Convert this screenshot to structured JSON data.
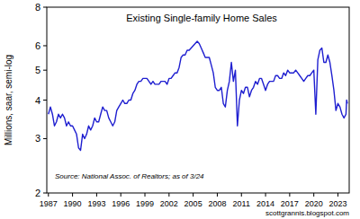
{
  "chart_data": {
    "type": "line",
    "title": "Existing Single-family Home Sales",
    "y_label": "Millions, saar, semi-log",
    "source": "Source: National Assoc. of Realtors; as of 3/24",
    "watermark": "scottgrannis.blogspot.com",
    "log": "y",
    "grid": false,
    "color": "#1f1fd0",
    "xlim": [
      1986.8,
      2024.4
    ],
    "xticks": [
      1987,
      1990,
      1993,
      1996,
      1999,
      2002,
      2005,
      2008,
      2011,
      2014,
      2017,
      2020,
      2023
    ],
    "ylim": [
      2,
      8
    ],
    "yticks": [
      2,
      3,
      4,
      5,
      6,
      8
    ],
    "x": [
      1987,
      1987.25,
      1987.5,
      1987.75,
      1988,
      1988.25,
      1988.5,
      1988.75,
      1989,
      1989.25,
      1989.5,
      1989.75,
      1990,
      1990.25,
      1990.5,
      1990.75,
      1991,
      1991.25,
      1991.5,
      1991.75,
      1992,
      1992.25,
      1992.5,
      1992.75,
      1993,
      1993.25,
      1993.5,
      1993.75,
      1994,
      1994.25,
      1994.5,
      1994.75,
      1995,
      1995.25,
      1995.5,
      1995.75,
      1996,
      1996.25,
      1996.5,
      1996.75,
      1997,
      1997.25,
      1997.5,
      1997.75,
      1998,
      1998.25,
      1998.5,
      1998.75,
      1999,
      1999.25,
      1999.5,
      1999.75,
      2000,
      2000.25,
      2000.5,
      2000.75,
      2001,
      2001.25,
      2001.5,
      2001.75,
      2002,
      2002.25,
      2002.5,
      2002.75,
      2003,
      2003.25,
      2003.5,
      2003.75,
      2004,
      2004.25,
      2004.5,
      2004.75,
      2005,
      2005.25,
      2005.5,
      2005.75,
      2006,
      2006.25,
      2006.5,
      2006.75,
      2007,
      2007.25,
      2007.5,
      2007.75,
      2008,
      2008.25,
      2008.5,
      2008.75,
      2009,
      2009.25,
      2009.5,
      2009.75,
      2010,
      2010.25,
      2010.5,
      2010.75,
      2011,
      2011.25,
      2011.5,
      2011.75,
      2012,
      2012.25,
      2012.5,
      2012.75,
      2013,
      2013.25,
      2013.5,
      2013.75,
      2014,
      2014.25,
      2014.5,
      2014.75,
      2015,
      2015.25,
      2015.5,
      2015.75,
      2016,
      2016.25,
      2016.5,
      2016.75,
      2017,
      2017.25,
      2017.5,
      2017.75,
      2018,
      2018.25,
      2018.5,
      2018.75,
      2019,
      2019.25,
      2019.5,
      2019.75,
      2020,
      2020.25,
      2020.5,
      2020.75,
      2021,
      2021.25,
      2021.5,
      2021.75,
      2022,
      2022.25,
      2022.5,
      2022.75,
      2023,
      2023.25,
      2023.5,
      2023.75,
      2024,
      2024.08,
      2024.17
    ],
    "values": [
      3.6,
      3.8,
      3.6,
      3.3,
      3.4,
      3.6,
      3.5,
      3.6,
      3.5,
      3.3,
      3.4,
      3.3,
      3.3,
      3.2,
      3.1,
      2.8,
      2.75,
      3.1,
      3.0,
      3.1,
      3.3,
      3.2,
      3.3,
      3.5,
      3.4,
      3.4,
      3.6,
      3.8,
      3.7,
      3.7,
      3.5,
      3.4,
      3.3,
      3.4,
      3.7,
      3.8,
      3.9,
      4.0,
      3.9,
      3.9,
      4.0,
      4.0,
      4.2,
      4.3,
      4.5,
      4.6,
      4.6,
      4.7,
      4.7,
      4.7,
      4.6,
      4.5,
      4.6,
      4.5,
      4.5,
      4.5,
      4.6,
      4.6,
      4.6,
      4.5,
      4.7,
      4.7,
      4.8,
      4.9,
      4.9,
      5.1,
      5.5,
      5.6,
      5.6,
      5.8,
      5.8,
      5.9,
      6.0,
      6.1,
      6.2,
      6.1,
      5.9,
      5.7,
      5.5,
      5.5,
      5.5,
      5.2,
      4.9,
      4.4,
      4.3,
      4.3,
      4.4,
      3.9,
      3.8,
      4.3,
      4.6,
      5.3,
      4.6,
      5.0,
      3.3,
      4.0,
      4.3,
      4.2,
      4.4,
      4.4,
      4.1,
      4.3,
      4.4,
      4.6,
      4.5,
      4.7,
      4.7,
      4.5,
      4.3,
      4.5,
      4.6,
      4.6,
      4.6,
      4.8,
      4.8,
      4.7,
      4.7,
      4.9,
      4.8,
      5.0,
      4.9,
      4.9,
      4.9,
      5.0,
      4.9,
      4.8,
      4.7,
      4.6,
      4.7,
      4.8,
      4.8,
      4.9,
      5.0,
      3.6,
      5.4,
      5.8,
      5.9,
      5.3,
      5.3,
      5.6,
      5.3,
      4.8,
      4.3,
      3.7,
      3.9,
      3.8,
      3.6,
      3.5,
      3.6,
      4.0,
      3.9
    ]
  }
}
